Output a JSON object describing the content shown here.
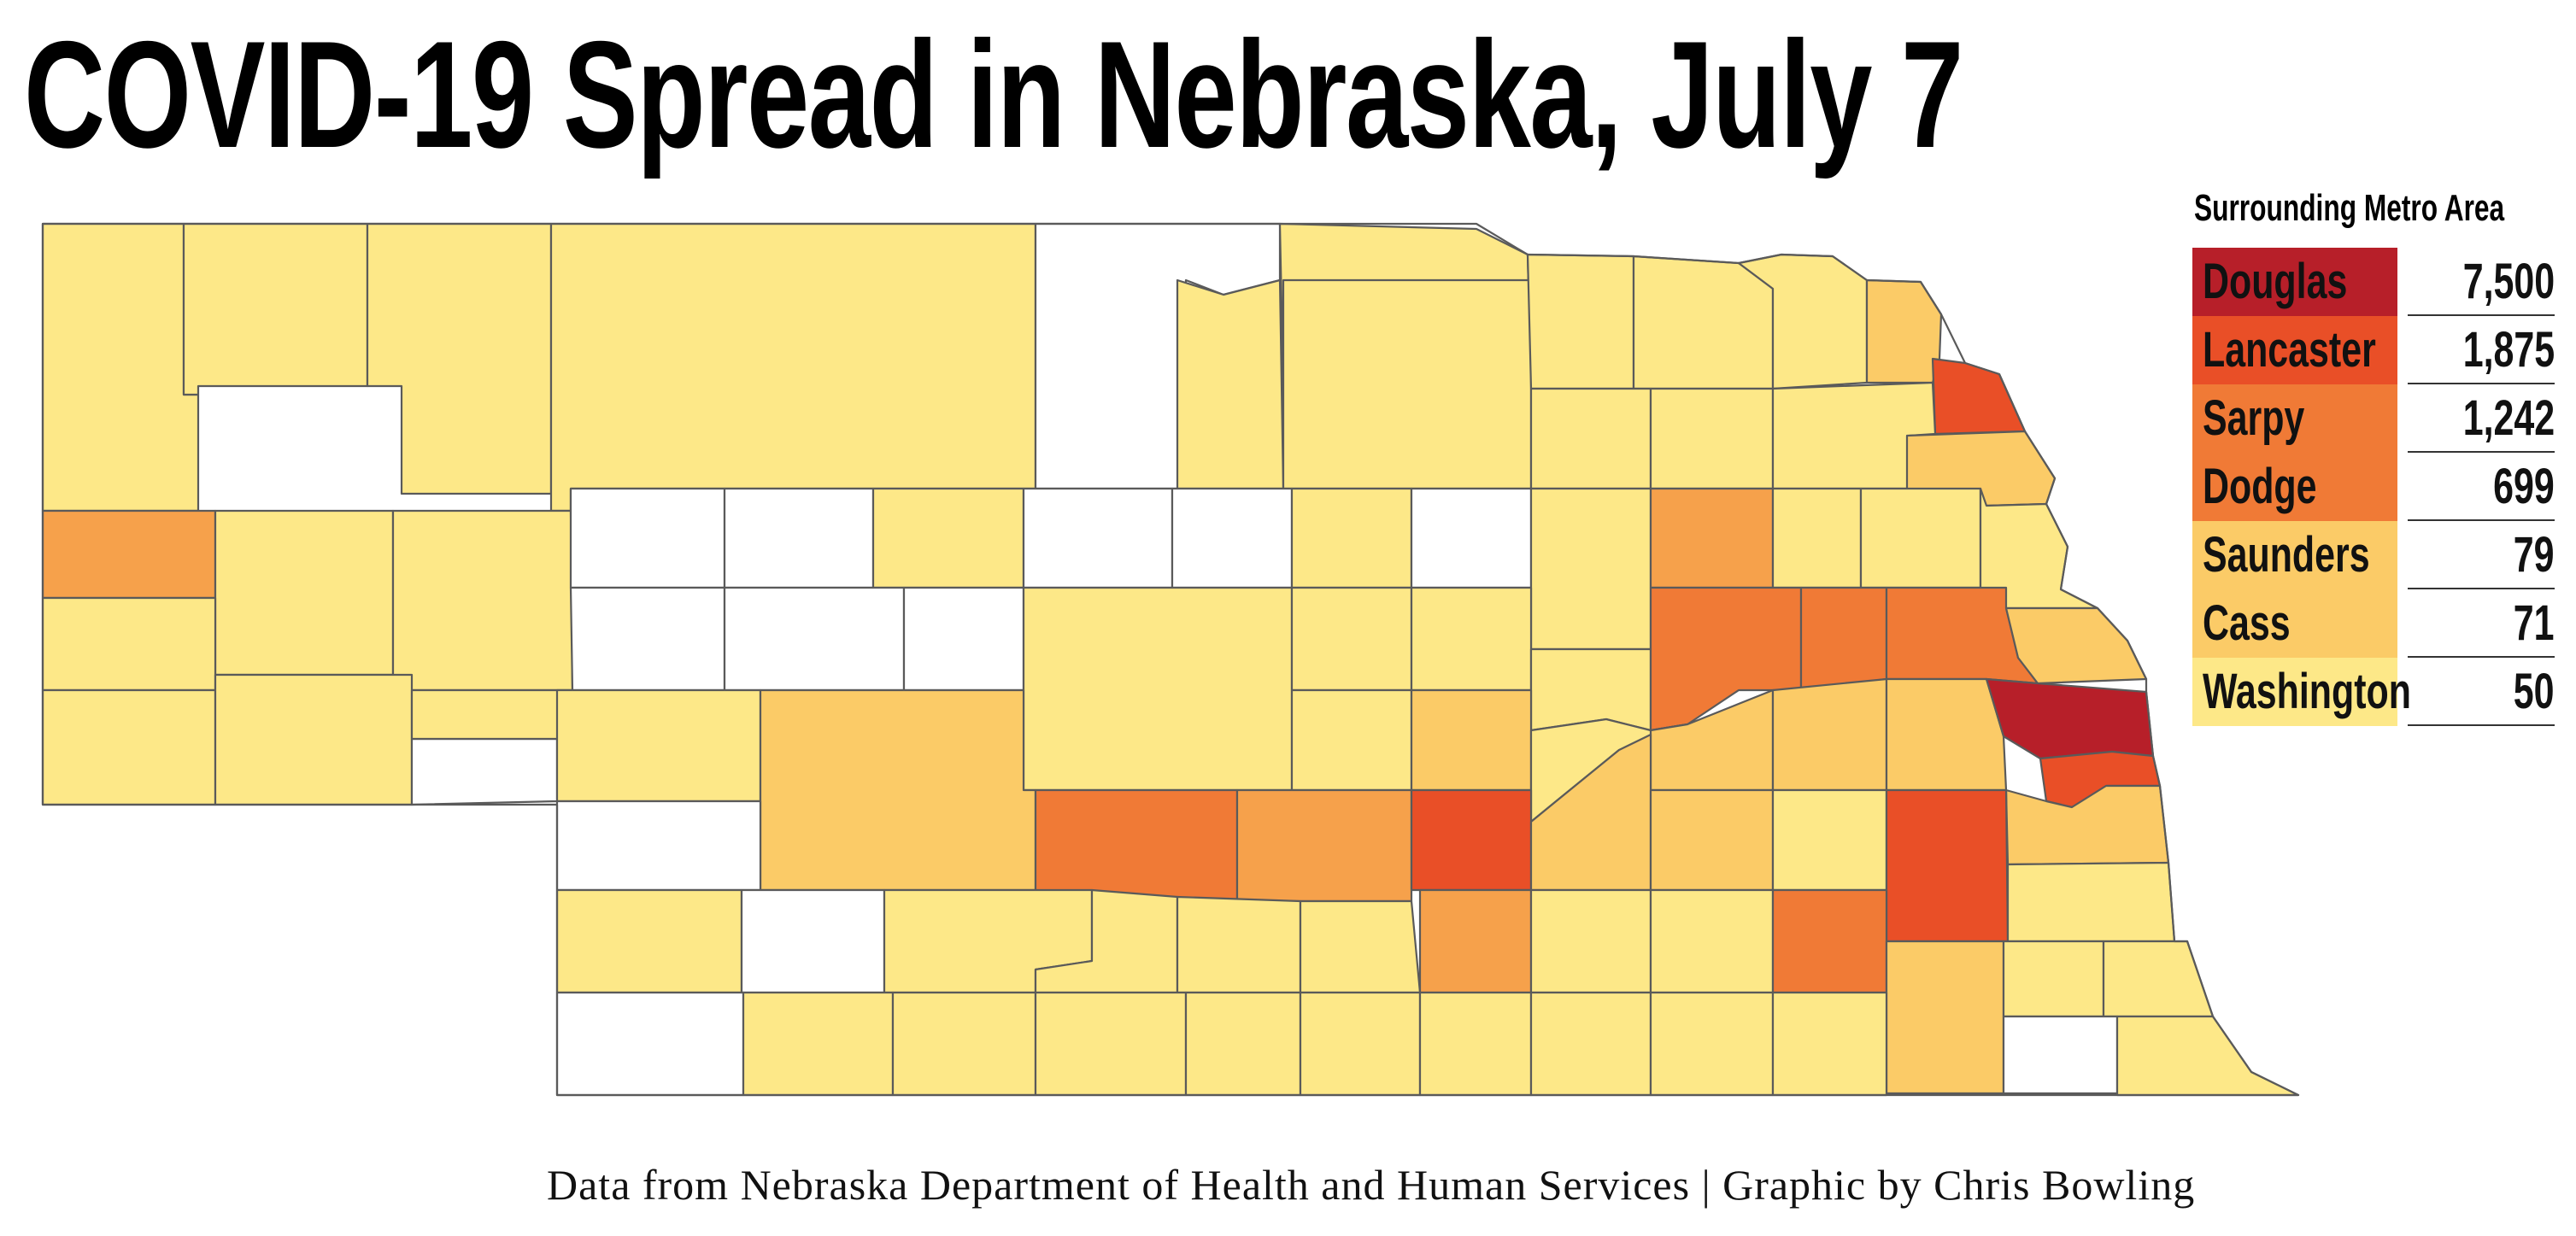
{
  "title": "COVID-19 Spread in Nebraska, July 7",
  "legend": {
    "heading": "Surrounding Metro Area",
    "items": [
      {
        "county": "Douglas",
        "cases": "7,500",
        "color": "#b71f29"
      },
      {
        "county": "Lancaster",
        "cases": "1,875",
        "color": "#e94f27"
      },
      {
        "county": "Sarpy",
        "cases": "1,242",
        "color": "#f07a36"
      },
      {
        "county": "Dodge",
        "cases": "699",
        "color": "#f07a36"
      },
      {
        "county": "Saunders",
        "cases": "79",
        "color": "#fbcb67"
      },
      {
        "county": "Cass",
        "cases": "71",
        "color": "#fbcb67"
      },
      {
        "county": "Washington",
        "cases": "50",
        "color": "#fde888"
      }
    ]
  },
  "map": {
    "color_scale": {
      "no_data": "#ffffff",
      "low": "#fde888",
      "low_mid": "#fbcb67",
      "mid": "#f6a14b",
      "high": "#f07a36",
      "very_high": "#e94f27",
      "highest": "#b71f29"
    },
    "border_color": "#5a5a5a"
  },
  "credit": "Data from Nebraska Department of Health and Human Services | Graphic by Chris Bowling"
}
